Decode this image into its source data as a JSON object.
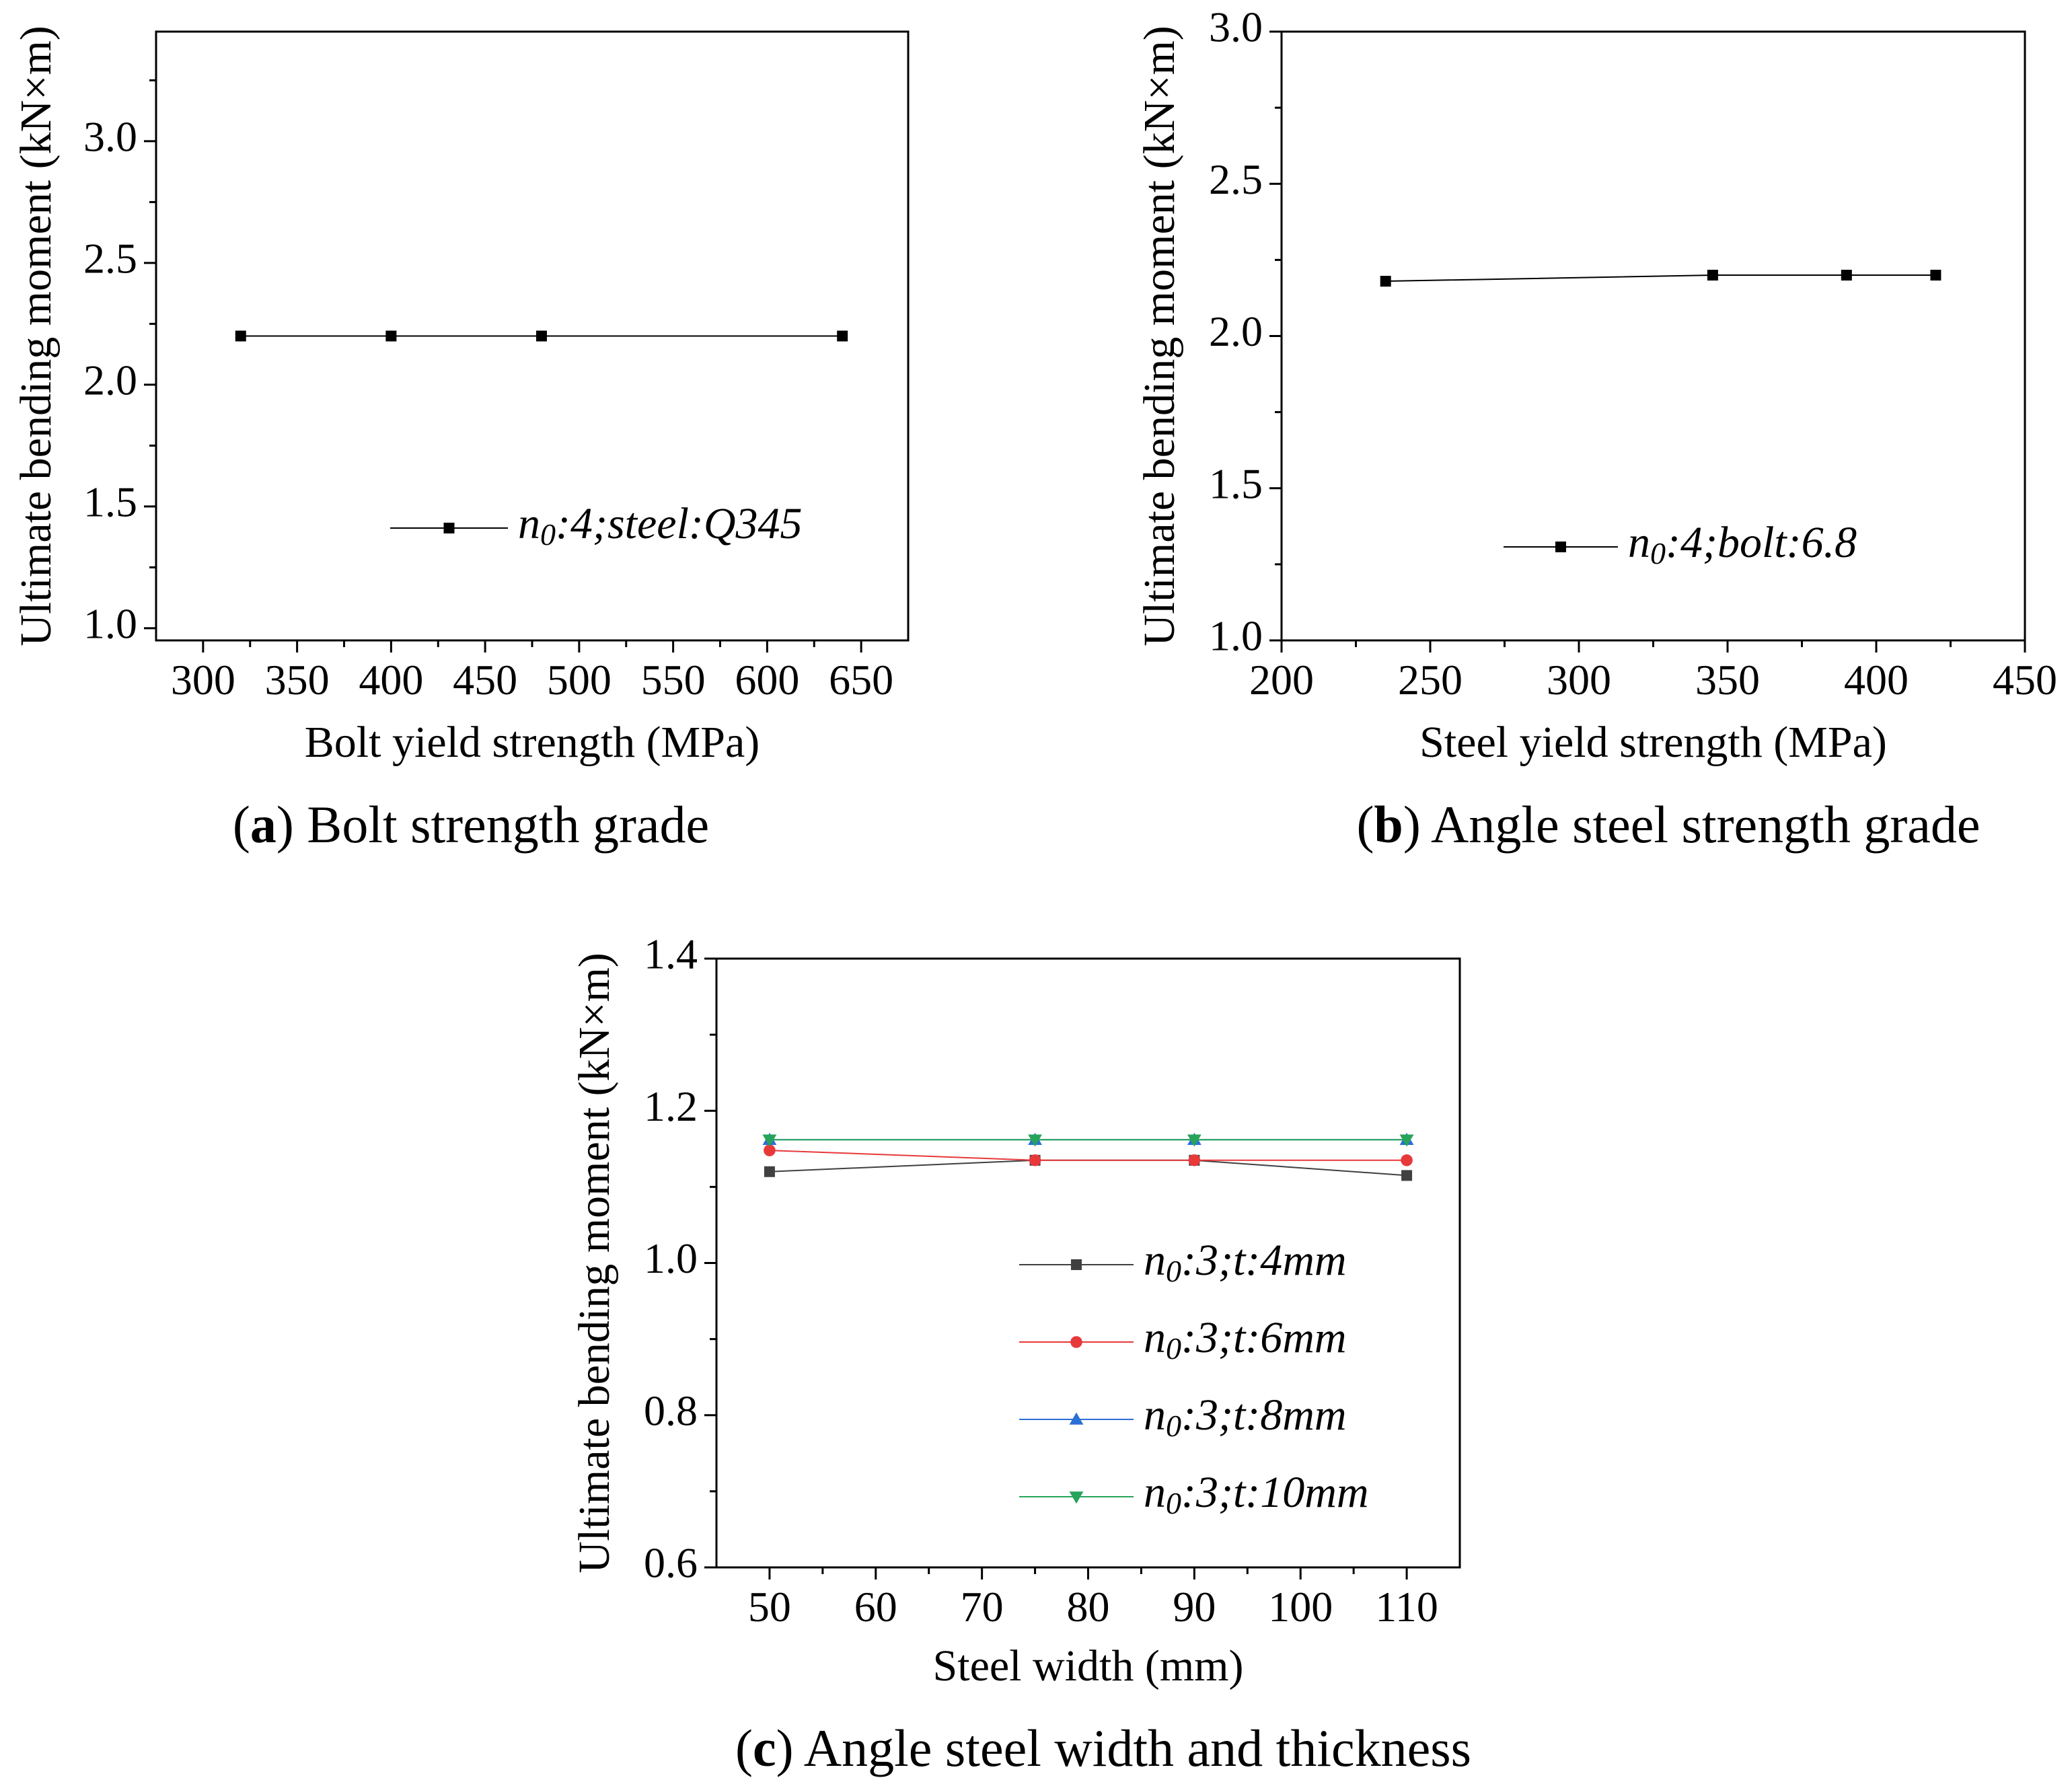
{
  "chart_data": [
    {
      "id": "a",
      "type": "line",
      "caption": {
        "letter": "a",
        "text": "Bolt strength grade"
      },
      "xlabel": "Bolt yield strength (MPa)",
      "ylabel": "Ultimate bending moment (kN×m)",
      "xlim": [
        275,
        675
      ],
      "ylim": [
        0.95,
        3.45
      ],
      "xticks": [
        300,
        350,
        400,
        450,
        500,
        550,
        600,
        650
      ],
      "yticks": [
        1.0,
        1.5,
        2.0,
        2.5,
        3.0
      ],
      "xtick_labels": [
        "300",
        "350",
        "400",
        "450",
        "500",
        "550",
        "600",
        "650"
      ],
      "ytick_labels": [
        "1.0",
        "1.5",
        "2.0",
        "2.5",
        "3.0"
      ],
      "legend_position": "center-right",
      "series": [
        {
          "name_parts": [
            "n",
            "0",
            ":4;steel:Q345"
          ],
          "color": "#000000",
          "marker": "square",
          "x": [
            320,
            400,
            480,
            640
          ],
          "y": [
            2.2,
            2.2,
            2.2,
            2.2
          ]
        }
      ]
    },
    {
      "id": "b",
      "type": "line",
      "caption": {
        "letter": "b",
        "text": "Angle steel strength grade"
      },
      "xlabel": "Steel yield strength (MPa)",
      "ylabel": "Ultimate bending moment (kN×m)",
      "xlim": [
        200,
        450
      ],
      "ylim": [
        1.0,
        3.0
      ],
      "xticks": [
        200,
        250,
        300,
        350,
        400,
        450
      ],
      "yticks": [
        1.0,
        1.5,
        2.0,
        2.5,
        3.0
      ],
      "xtick_labels": [
        "200",
        "250",
        "300",
        "350",
        "400",
        "450"
      ],
      "ytick_labels": [
        "1.0",
        "1.5",
        "2.0",
        "2.5",
        "3.0"
      ],
      "legend_position": "bottom-right",
      "series": [
        {
          "name_parts": [
            "n",
            "0",
            ":4;bolt:6.8"
          ],
          "color": "#000000",
          "marker": "square",
          "x": [
            235,
            345,
            390,
            420
          ],
          "y": [
            2.18,
            2.2,
            2.2,
            2.2
          ]
        }
      ]
    },
    {
      "id": "c",
      "type": "line",
      "caption": {
        "letter": "c",
        "text": "Angle steel width and thickness"
      },
      "xlabel": "Steel width (mm)",
      "ylabel": "Ultimate bending moment (kN×m)",
      "xlim": [
        45,
        115
      ],
      "ylim": [
        0.6,
        1.4
      ],
      "xticks": [
        50,
        60,
        70,
        80,
        90,
        100,
        110
      ],
      "yticks": [
        0.6,
        0.8,
        1.0,
        1.2,
        1.4
      ],
      "xtick_labels": [
        "50",
        "60",
        "70",
        "80",
        "90",
        "100",
        "110"
      ],
      "ytick_labels": [
        "0.6",
        "0.8",
        "1.0",
        "1.2",
        "1.4"
      ],
      "legend_position": "bottom-right",
      "series": [
        {
          "name_parts": [
            "n",
            "0",
            ":3;t:4mm"
          ],
          "color": "#404040",
          "marker": "square",
          "x": [
            50,
            75,
            90,
            110
          ],
          "y": [
            1.12,
            1.135,
            1.135,
            1.115
          ]
        },
        {
          "name_parts": [
            "n",
            "0",
            ":3;t:6mm"
          ],
          "color": "#e8393a",
          "marker": "circle",
          "x": [
            50,
            75,
            90,
            110
          ],
          "y": [
            1.148,
            1.135,
            1.135,
            1.135
          ]
        },
        {
          "name_parts": [
            "n",
            "0",
            ":3;t:8mm"
          ],
          "color": "#2b6fd6",
          "marker": "triangle-up",
          "x": [
            50,
            75,
            90,
            110
          ],
          "y": [
            1.162,
            1.162,
            1.162,
            1.162
          ]
        },
        {
          "name_parts": [
            "n",
            "0",
            ":3;t:10mm"
          ],
          "color": "#27a35a",
          "marker": "triangle-down",
          "x": [
            50,
            75,
            90,
            110
          ],
          "y": [
            1.162,
            1.162,
            1.162,
            1.162
          ]
        }
      ]
    }
  ]
}
